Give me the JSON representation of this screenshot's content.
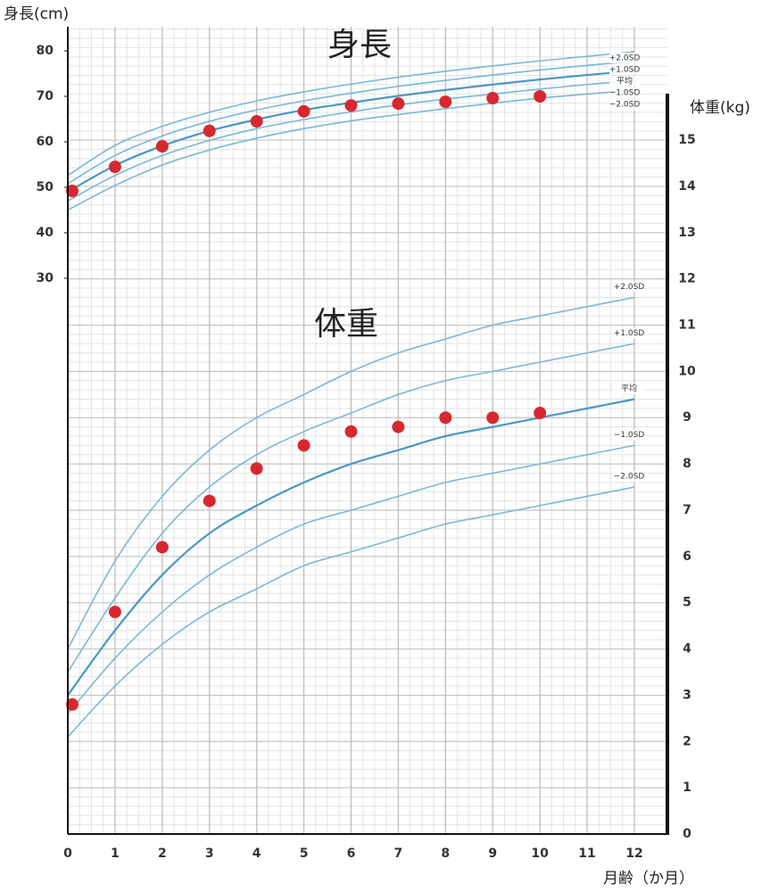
{
  "chart_data": {
    "type": "line",
    "x": [
      0,
      1,
      2,
      3,
      4,
      5,
      6,
      7,
      8,
      9,
      10,
      11,
      12
    ],
    "xlim": [
      0,
      12.7
    ],
    "xticks": [
      0,
      1,
      2,
      3,
      4,
      5,
      6,
      7,
      8,
      9,
      10,
      11,
      12
    ],
    "x_label": "月齢（か月）",
    "y_label": "身長(cm)",
    "ylim": [
      -92.2,
      85.3
    ],
    "yticks": [
      30,
      40,
      50,
      60,
      70,
      80
    ],
    "y2_label": "体重(kg)",
    "y2lim": [
      0,
      17.45
    ],
    "y2ticks": [
      0,
      1,
      2,
      3,
      4,
      5,
      6,
      7,
      8,
      9,
      10,
      11,
      12,
      13,
      14,
      15
    ],
    "grid": true,
    "series": [
      {
        "name": "+2.0SD",
        "color": "#7ab8d8",
        "axis": "y",
        "values": [
          52.6,
          59.2,
          63.4,
          66.5,
          69.0,
          71.0,
          72.7,
          74.2,
          75.5,
          76.7,
          77.8,
          78.8,
          79.8
        ]
      },
      {
        "name": "+1.0SD",
        "color": "#7ab8d8",
        "axis": "y",
        "values": [
          50.8,
          57.0,
          61.3,
          64.5,
          67.0,
          69.0,
          70.7,
          72.2,
          73.5,
          74.7,
          75.8,
          76.8,
          77.7
        ]
      },
      {
        "name": "平均",
        "color": "#4a98c4",
        "axis": "y",
        "values": [
          49.0,
          54.8,
          59.1,
          62.4,
          64.9,
          67.0,
          68.6,
          70.1,
          71.4,
          72.6,
          73.7,
          74.7,
          75.6
        ]
      },
      {
        "name": "−1.0SD",
        "color": "#7ab8d8",
        "axis": "y",
        "values": [
          47.0,
          52.6,
          57.0,
          60.3,
          62.9,
          64.9,
          66.6,
          68.1,
          69.4,
          70.5,
          71.6,
          72.6,
          73.5
        ]
      },
      {
        "name": "−2.0SD",
        "color": "#7ab8d8",
        "axis": "y",
        "values": [
          45.0,
          50.4,
          54.9,
          58.2,
          60.8,
          62.9,
          64.6,
          66.0,
          67.3,
          68.5,
          69.6,
          70.5,
          71.4
        ]
      },
      {
        "name": "身長",
        "type": "scatter",
        "color": "#d7282f",
        "axis": "y",
        "values": [
          49.2,
          54.5,
          59.0,
          62.4,
          64.5,
          66.7,
          68.0,
          68.4,
          68.8,
          69.6,
          70.0,
          null,
          null
        ]
      },
      {
        "name": "+2.0SD",
        "color": "#7ab8d8",
        "axis": "y2",
        "values": [
          4.0,
          5.9,
          7.3,
          8.3,
          9.0,
          9.5,
          10.0,
          10.4,
          10.7,
          11.0,
          11.2,
          11.4,
          11.6
        ]
      },
      {
        "name": "+1.0SD",
        "color": "#7ab8d8",
        "axis": "y2",
        "values": [
          3.5,
          5.1,
          6.5,
          7.5,
          8.2,
          8.7,
          9.1,
          9.5,
          9.8,
          10.0,
          10.2,
          10.4,
          10.6
        ]
      },
      {
        "name": "平均",
        "color": "#4a98c4",
        "axis": "y2",
        "values": [
          3.0,
          4.4,
          5.6,
          6.5,
          7.1,
          7.6,
          8.0,
          8.3,
          8.6,
          8.8,
          9.0,
          9.2,
          9.4
        ]
      },
      {
        "name": "−1.0SD",
        "color": "#7ab8d8",
        "axis": "y2",
        "values": [
          2.6,
          3.8,
          4.8,
          5.6,
          6.2,
          6.7,
          7.0,
          7.3,
          7.6,
          7.8,
          8.0,
          8.2,
          8.4
        ]
      },
      {
        "name": "−2.0SD",
        "color": "#7ab8d8",
        "axis": "y2",
        "values": [
          2.1,
          3.2,
          4.1,
          4.8,
          5.3,
          5.8,
          6.1,
          6.4,
          6.7,
          6.9,
          7.1,
          7.3,
          7.5
        ]
      },
      {
        "name": "体重",
        "type": "scatter",
        "color": "#d7282f",
        "axis": "y2",
        "values": [
          2.8,
          4.8,
          6.2,
          7.2,
          7.9,
          8.4,
          8.7,
          8.8,
          9.0,
          9.0,
          9.1,
          null,
          null
        ]
      }
    ]
  }
}
